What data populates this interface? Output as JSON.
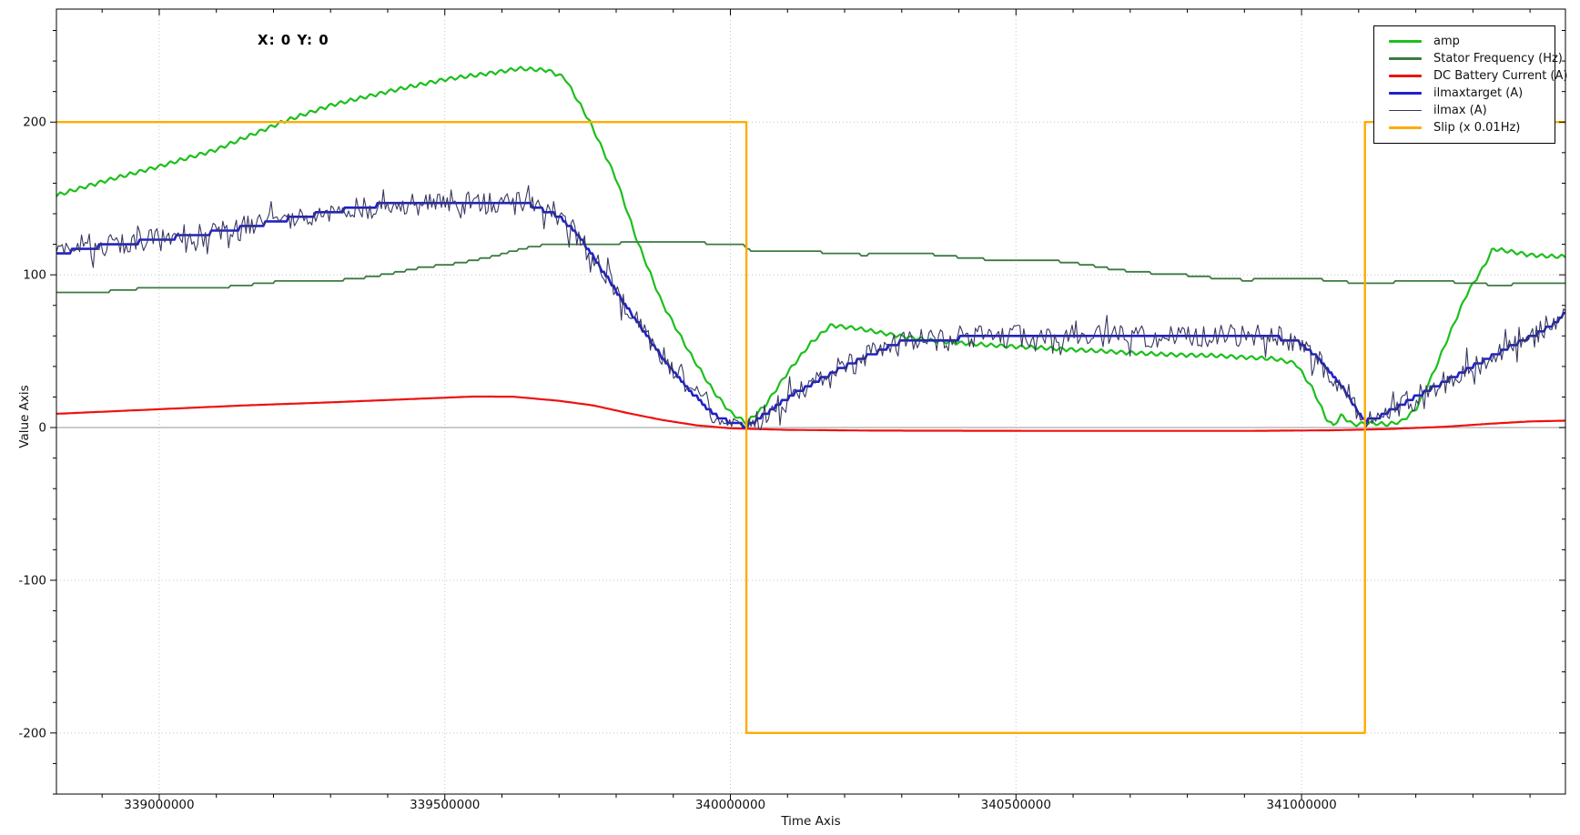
{
  "app": {
    "crosshair_readout": "X: 0  Y: 0"
  },
  "chart_data": {
    "type": "line",
    "title": "",
    "xlabel": "Time Axis",
    "ylabel": "Value Axis",
    "xlim": [
      338820000,
      341462000
    ],
    "ylim": [
      -240,
      274
    ],
    "grid": "dotted",
    "zero_line": true,
    "legend_position": "top-right",
    "x_minor_step": 100000,
    "y_minor_step": 20,
    "x_major_ticks": [
      {
        "value": 339000000,
        "label": "339000000"
      },
      {
        "value": 339500000,
        "label": "339500000"
      },
      {
        "value": 340000000,
        "label": "340000000"
      },
      {
        "value": 340500000,
        "label": "340500000"
      },
      {
        "value": 341000000,
        "label": "341000000"
      }
    ],
    "y_major_ticks": [
      {
        "value": 200,
        "label": "200"
      },
      {
        "value": 100,
        "label": "100"
      },
      {
        "value": 0,
        "label": "0"
      },
      {
        "value": -100,
        "label": "-100"
      },
      {
        "value": -200,
        "label": "-200"
      }
    ],
    "series": [
      {
        "name": "amp",
        "color": "#1dbf1d",
        "width": 2.2,
        "ripple_amp": 1.4,
        "ripple_wavelength": 11,
        "points": [
          [
            338820000,
            152
          ],
          [
            338900000,
            161
          ],
          [
            339000000,
            171
          ],
          [
            339100000,
            182
          ],
          [
            339215000,
            200
          ],
          [
            339300000,
            211
          ],
          [
            339400000,
            220
          ],
          [
            339500000,
            228
          ],
          [
            339560000,
            231
          ],
          [
            339630000,
            235
          ],
          [
            339680000,
            234
          ],
          [
            339710000,
            229
          ],
          [
            339754000,
            200
          ],
          [
            339800000,
            163
          ],
          [
            339837000,
            122
          ],
          [
            339880000,
            82
          ],
          [
            339930000,
            48
          ],
          [
            339970000,
            24
          ],
          [
            340000000,
            10
          ],
          [
            340028000,
            3
          ],
          [
            340060000,
            14
          ],
          [
            340100000,
            36
          ],
          [
            340140000,
            55
          ],
          [
            340176000,
            67
          ],
          [
            340220000,
            65
          ],
          [
            340280000,
            61
          ],
          [
            340350000,
            57
          ],
          [
            340450000,
            54
          ],
          [
            340550000,
            52
          ],
          [
            340650000,
            50
          ],
          [
            340750000,
            48
          ],
          [
            340850000,
            47
          ],
          [
            340952000,
            45
          ],
          [
            340990000,
            42
          ],
          [
            341020000,
            25
          ],
          [
            341043000,
            6
          ],
          [
            341055000,
            1
          ],
          [
            341070000,
            8
          ],
          [
            341090000,
            2
          ],
          [
            341120000,
            3
          ],
          [
            341150000,
            2
          ],
          [
            341175000,
            4
          ],
          [
            341200000,
            12
          ],
          [
            341230000,
            35
          ],
          [
            341260000,
            62
          ],
          [
            341290000,
            88
          ],
          [
            341320000,
            106
          ],
          [
            341335000,
            117
          ],
          [
            341370000,
            115
          ],
          [
            341400000,
            113
          ],
          [
            341440000,
            112
          ],
          [
            341462000,
            112
          ]
        ]
      },
      {
        "name": "Stator Frequency (Hz)",
        "color": "#3b7a40",
        "width": 1.8,
        "quantize": 1.5,
        "wobble": 0.8,
        "points": [
          [
            338820000,
            88
          ],
          [
            339000000,
            91
          ],
          [
            339100000,
            93
          ],
          [
            339200000,
            95
          ],
          [
            339300000,
            97
          ],
          [
            339400000,
            100
          ],
          [
            339500000,
            106
          ],
          [
            339580000,
            112
          ],
          [
            339650000,
            117
          ],
          [
            339700000,
            120
          ],
          [
            339760000,
            121
          ],
          [
            339850000,
            122
          ],
          [
            339950000,
            121.5
          ],
          [
            340020000,
            121
          ],
          [
            340040000,
            115.5
          ],
          [
            340120000,
            115
          ],
          [
            340200000,
            114
          ],
          [
            340300000,
            113
          ],
          [
            340400000,
            111.5
          ],
          [
            340520000,
            109.5
          ],
          [
            340630000,
            107
          ],
          [
            340745000,
            101
          ],
          [
            340800000,
            99.5
          ],
          [
            340900000,
            97.5
          ],
          [
            341000000,
            96.5
          ],
          [
            341100000,
            95
          ],
          [
            341250000,
            95
          ],
          [
            341350000,
            94.5
          ],
          [
            341462000,
            94.5
          ]
        ]
      },
      {
        "name": "DC Battery Current (A)",
        "color": "#ee1111",
        "width": 2.2,
        "points": [
          [
            338820000,
            9
          ],
          [
            339000000,
            12
          ],
          [
            339150000,
            14.5
          ],
          [
            339300000,
            16.5
          ],
          [
            339450000,
            18.8
          ],
          [
            339550000,
            20.3
          ],
          [
            339620000,
            20.2
          ],
          [
            339700000,
            17.5
          ],
          [
            339760000,
            14.5
          ],
          [
            339820000,
            9.5
          ],
          [
            339880000,
            5
          ],
          [
            339940000,
            1.5
          ],
          [
            340000000,
            -0.5
          ],
          [
            340100000,
            -1.5
          ],
          [
            340250000,
            -2
          ],
          [
            340600000,
            -2.2
          ],
          [
            340900000,
            -2.2
          ],
          [
            341050000,
            -1.8
          ],
          [
            341150000,
            -1
          ],
          [
            341250000,
            0.5
          ],
          [
            341330000,
            2.5
          ],
          [
            341400000,
            4
          ],
          [
            341462000,
            4.5
          ]
        ]
      },
      {
        "name": "ilmaxtarget (A)",
        "color": "#2020cc",
        "width": 2.6,
        "quantize": 3,
        "points": [
          [
            338820000,
            114
          ],
          [
            338900000,
            119
          ],
          [
            339000000,
            123
          ],
          [
            339080000,
            127
          ],
          [
            339150000,
            131
          ],
          [
            339215000,
            136
          ],
          [
            339280000,
            140
          ],
          [
            339330000,
            143
          ],
          [
            339360000,
            145
          ],
          [
            339400000,
            146
          ],
          [
            339500000,
            147
          ],
          [
            339600000,
            147
          ],
          [
            339650000,
            146
          ],
          [
            339700000,
            138
          ],
          [
            339730000,
            128
          ],
          [
            339760000,
            112
          ],
          [
            339790000,
            95
          ],
          [
            339820000,
            78
          ],
          [
            339850000,
            62
          ],
          [
            339880000,
            46
          ],
          [
            339910000,
            32
          ],
          [
            339940000,
            20
          ],
          [
            339970000,
            9
          ],
          [
            340000000,
            3
          ],
          [
            340028000,
            1
          ],
          [
            340050000,
            6
          ],
          [
            340080000,
            14
          ],
          [
            340110000,
            22
          ],
          [
            340150000,
            30
          ],
          [
            340190000,
            38
          ],
          [
            340230000,
            45
          ],
          [
            340260000,
            50
          ],
          [
            340290000,
            55
          ],
          [
            340310000,
            57
          ],
          [
            340350000,
            58
          ],
          [
            340450000,
            59
          ],
          [
            340600000,
            59
          ],
          [
            340750000,
            60
          ],
          [
            340900000,
            60
          ],
          [
            340984000,
            58
          ],
          [
            341010000,
            52
          ],
          [
            341030000,
            45
          ],
          [
            341050000,
            36
          ],
          [
            341070000,
            27
          ],
          [
            341090000,
            16
          ],
          [
            341100000,
            9
          ],
          [
            341112000,
            4
          ],
          [
            341130000,
            6
          ],
          [
            341150000,
            10
          ],
          [
            341180000,
            16
          ],
          [
            341210000,
            22
          ],
          [
            341240000,
            28
          ],
          [
            341270000,
            34
          ],
          [
            341300000,
            40
          ],
          [
            341330000,
            46
          ],
          [
            341360000,
            52
          ],
          [
            341400000,
            59
          ],
          [
            341430000,
            65
          ],
          [
            341450000,
            70
          ],
          [
            341462000,
            76
          ]
        ]
      },
      {
        "name": "ilmax (A)",
        "color": "#383860",
        "width": 1.1,
        "base": "ilmaxtarget (A)",
        "quantize": 3,
        "noise_amp": 7.5,
        "noise_seed": 77
      },
      {
        "name": "Slip (x 0.01Hz)",
        "color": "#ffab00",
        "width": 2.4,
        "steps": true,
        "points": [
          [
            338820000,
            200
          ],
          [
            340028000,
            200
          ],
          [
            340028000,
            -200
          ],
          [
            341111000,
            -200
          ],
          [
            341111000,
            200
          ],
          [
            341462000,
            200
          ]
        ]
      }
    ]
  }
}
